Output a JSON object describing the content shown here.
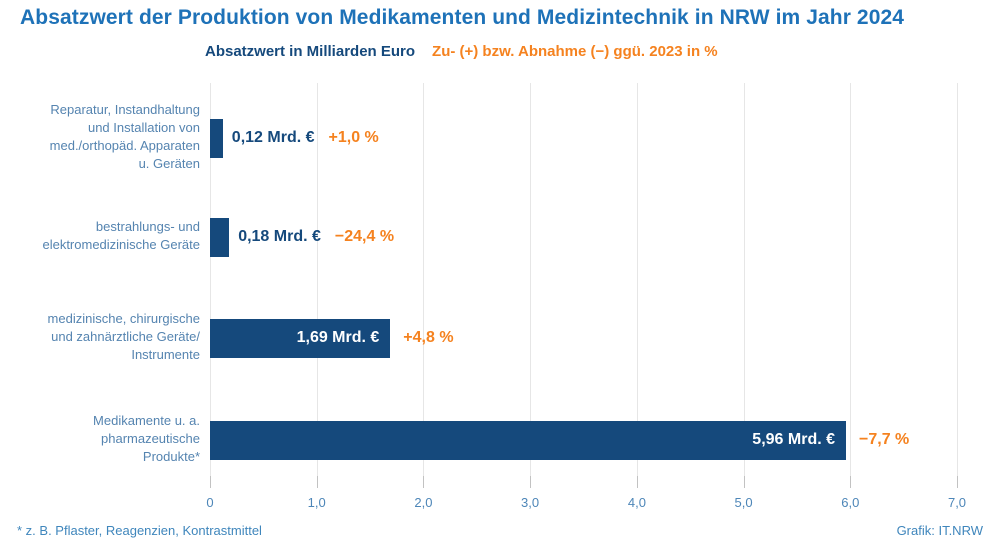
{
  "title": "Absatzwert der Produktion von Medikamenten und Medizintechnik in NRW im Jahr 2024",
  "legend": {
    "value_label": "Absatzwert in Milliarden Euro",
    "change_label": "Zu- (+) bzw. Abnahme (−) ggü. 2023 in %"
  },
  "footnote": "* z. B. Pflaster, Reagenzien, Kontrastmittel",
  "credit": "Grafik: IT.NRW",
  "colors": {
    "title_blue": "#1e72b8",
    "bar_navy": "#15497c",
    "orange": "#f5821f",
    "category_blue": "#5584b0",
    "axis_blue": "#4d86b8",
    "footnote_blue": "#3f86bc",
    "gridline": "#e6e6e6",
    "tick": "#c2c2c2"
  },
  "chart_data": {
    "type": "bar",
    "orientation": "horizontal",
    "title": "Absatzwert der Produktion von Medikamenten und Medizintechnik in NRW im Jahr 2024",
    "xlabel": "Absatzwert in Milliarden Euro",
    "unit": "Mrd. €",
    "xlim": [
      0,
      7
    ],
    "grid": "vertical",
    "x_ticks": [
      "0",
      "1,0",
      "2,0",
      "3,0",
      "4,0",
      "5,0",
      "6,0",
      "7,0"
    ],
    "x_tick_values": [
      0,
      1,
      2,
      3,
      4,
      5,
      6,
      7
    ],
    "categories": [
      "Reparatur, Instandhaltung und Installation von med./orthopäd. Apparaten u. Geräten",
      "bestrahlungs- und elektromedizinische Geräte",
      "medizinische, chirurgische und zahnärztliche Geräte/Instrumente",
      "Medikamente u. a. pharmazeutische Produkte*"
    ],
    "category_lines": [
      [
        "Reparatur, Instandhaltung",
        "und Installation von",
        "med./orthopäd. Apparaten",
        "u. Geräten"
      ],
      [
        "bestrahlungs- und",
        "elektromedizinische Geräte"
      ],
      [
        "medizinische, chirurgische",
        "und zahnärztliche Geräte/",
        "Instrumente"
      ],
      [
        "Medikamente u. a.",
        "pharmazeutische",
        "Produkte*"
      ]
    ],
    "values": [
      0.12,
      0.18,
      1.69,
      5.96
    ],
    "value_labels": [
      "0,12 Mrd. €",
      "0,18 Mrd. €",
      "1,69 Mrd. €",
      "5,96 Mrd. €"
    ],
    "change_pct": [
      1.0,
      -24.4,
      4.8,
      -7.7
    ],
    "change_labels": [
      "+1,0 %",
      "−24,4 %",
      "+4,8 %",
      "−7,7 %"
    ],
    "value_label_position": [
      "outside",
      "outside",
      "inside",
      "inside"
    ]
  }
}
